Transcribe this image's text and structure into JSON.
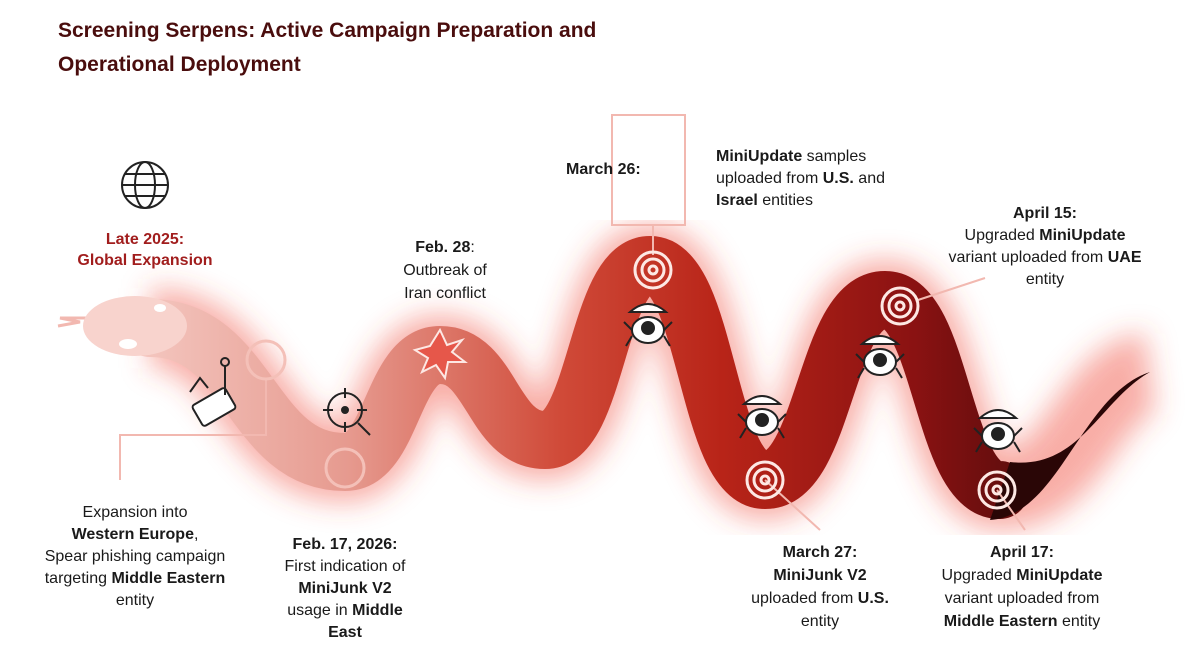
{
  "title": "Screening Serpens: Active Campaign Preparation and Operational Deployment",
  "blocks": [
    {
      "color": "#a11d1d",
      "lines": [
        [
          {
            "t": "Late 2025:",
            "b": true
          }
        ],
        [
          {
            "t": "Global Expansion",
            "b": true
          }
        ]
      ]
    },
    {
      "lines": [
        [
          {
            "t": "Expansion into"
          }
        ],
        [
          {
            "t": "Western Europe",
            "b": true
          },
          {
            "t": ","
          }
        ],
        [
          {
            "t": "Spear phishing campaign"
          }
        ],
        [
          {
            "t": "targeting "
          },
          {
            "t": "Middle Eastern",
            "b": true
          }
        ],
        [
          {
            "t": "entity"
          }
        ]
      ]
    },
    {
      "lines": [
        [
          {
            "t": "Feb. 17, 2026:",
            "b": true
          }
        ],
        [
          {
            "t": "First indication of"
          }
        ],
        [
          {
            "t": "MiniJunk V2",
            "b": true
          }
        ],
        [
          {
            "t": "usage in "
          },
          {
            "t": "Middle",
            "b": true
          }
        ],
        [
          {
            "t": "East",
            "b": true
          }
        ]
      ]
    },
    {
      "lines": [
        [
          {
            "t": "Feb. 28",
            "b": true
          },
          {
            "t": ":"
          }
        ],
        [
          {
            "t": "Outbreak of"
          }
        ],
        [
          {
            "t": "Iran conflict"
          }
        ]
      ]
    },
    {
      "lines": [
        [
          {
            "t": "March 26:",
            "b": true
          }
        ]
      ]
    },
    {
      "lines": [
        [
          {
            "t": "MiniUpdate",
            "b": true
          },
          {
            "t": " samples"
          }
        ],
        [
          {
            "t": "uploaded from "
          },
          {
            "t": "U.S.",
            "b": true
          },
          {
            "t": " and"
          }
        ],
        [
          {
            "t": "Israel",
            "b": true
          },
          {
            "t": " entities"
          }
        ]
      ]
    },
    {
      "lines": [
        [
          {
            "t": "April 15:",
            "b": true
          }
        ],
        [
          {
            "t": "Upgraded "
          },
          {
            "t": "MiniUpdate",
            "b": true
          }
        ],
        [
          {
            "t": "variant uploaded from "
          },
          {
            "t": "UAE",
            "b": true
          }
        ],
        [
          {
            "t": "entity"
          }
        ]
      ]
    },
    {
      "lines": [
        [
          {
            "t": "March 27:",
            "b": true
          }
        ],
        [
          {
            "t": "MiniJunk V2",
            "b": true
          }
        ],
        [
          {
            "t": "uploaded from "
          },
          {
            "t": "U.S.",
            "b": true
          }
        ],
        [
          {
            "t": "entity"
          }
        ]
      ]
    },
    {
      "lines": [
        [
          {
            "t": "April 17:",
            "b": true
          }
        ],
        [
          {
            "t": "Upgraded "
          },
          {
            "t": "MiniUpdate",
            "b": true
          }
        ],
        [
          {
            "t": "variant uploaded from"
          }
        ],
        [
          {
            "t": "Middle Eastern",
            "b": true
          },
          {
            "t": " entity"
          }
        ]
      ]
    }
  ]
}
